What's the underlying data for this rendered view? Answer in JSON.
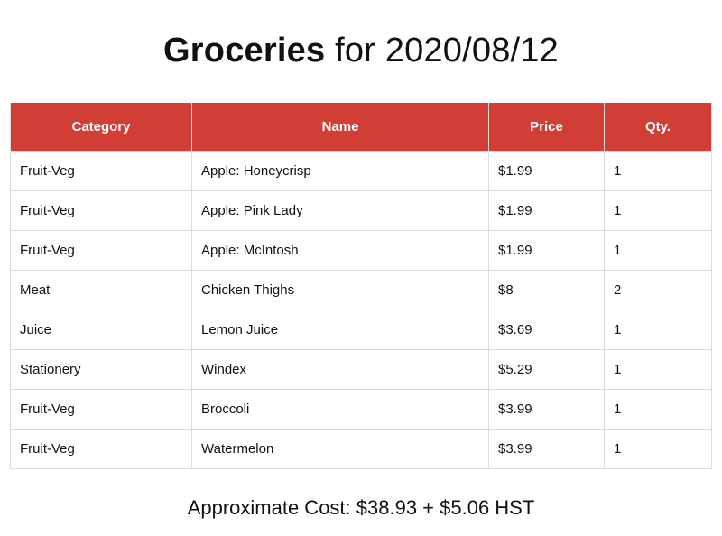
{
  "title": {
    "bold": "Groceries",
    "rest": "for 2020/08/12"
  },
  "colors": {
    "header_bg": "#d03e35",
    "header_text": "#ffffff",
    "border": "#dcdcdc"
  },
  "table": {
    "headers": [
      "Category",
      "Name",
      "Price",
      "Qty."
    ],
    "rows": [
      [
        "Fruit-Veg",
        "Apple: Honeycrisp",
        "$1.99",
        "1"
      ],
      [
        "Fruit-Veg",
        "Apple: Pink Lady",
        "$1.99",
        "1"
      ],
      [
        "Fruit-Veg",
        "Apple: McIntosh",
        "$1.99",
        "1"
      ],
      [
        "Meat",
        "Chicken Thighs",
        "$8",
        "2"
      ],
      [
        "Juice",
        "Lemon Juice",
        "$3.69",
        "1"
      ],
      [
        "Stationery",
        "Windex",
        "$5.29",
        "1"
      ],
      [
        "Fruit-Veg",
        "Broccoli",
        "$3.99",
        "1"
      ],
      [
        "Fruit-Veg",
        "Watermelon",
        "$3.99",
        "1"
      ]
    ]
  },
  "footer": {
    "text": "Approximate Cost: $38.93 + $5.06 HST"
  }
}
